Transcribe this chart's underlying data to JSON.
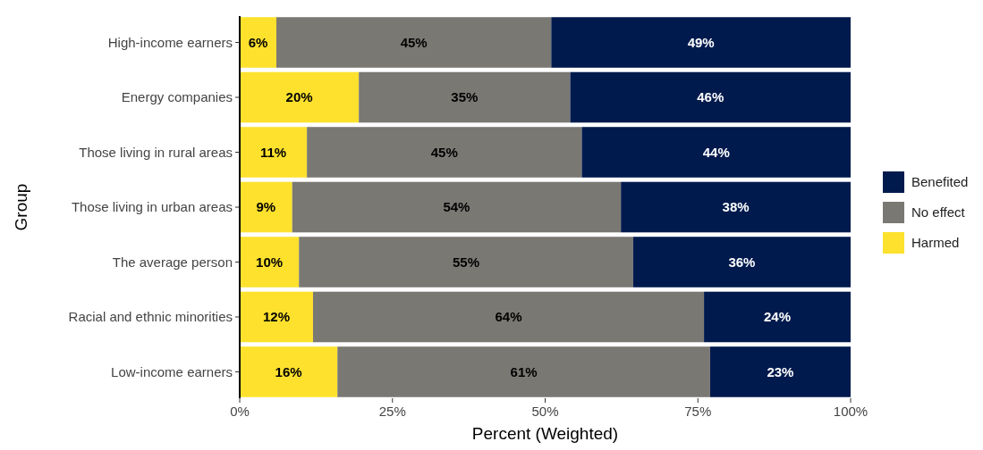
{
  "chart_data": {
    "type": "bar",
    "orientation": "horizontal",
    "stacked": true,
    "xlabel": "Percent (Weighted)",
    "ylabel": "Group",
    "categories": [
      "High-income earners",
      "Energy companies",
      "Those living in rural areas",
      "Those living in urban areas",
      "The average person",
      "Racial and ethnic minorities",
      "Low-income earners"
    ],
    "series": [
      {
        "name": "Harmed",
        "color": "#fde12d",
        "values": [
          6,
          19.5,
          11,
          8.6,
          9.7,
          12,
          16
        ],
        "value_labels": [
          "6%",
          "20%",
          "11%",
          "9%",
          "10%",
          "12%",
          "16%"
        ]
      },
      {
        "name": "No effect",
        "color": "#7a7873",
        "values": [
          45,
          34.6,
          45,
          53.8,
          54.7,
          64,
          61
        ],
        "value_labels": [
          "45%",
          "35%",
          "45%",
          "54%",
          "55%",
          "64%",
          "61%"
        ]
      },
      {
        "name": "Benefited",
        "color": "#001a4d",
        "values": [
          49,
          45.9,
          44,
          37.6,
          35.6,
          24,
          23
        ],
        "value_labels": [
          "49%",
          "46%",
          "44%",
          "38%",
          "36%",
          "24%",
          "23%"
        ]
      }
    ],
    "xlim": [
      0,
      100
    ],
    "xticks": [
      {
        "value": 0,
        "label": "0%"
      },
      {
        "value": 25,
        "label": "25%"
      },
      {
        "value": 50,
        "label": "50%"
      },
      {
        "value": 75,
        "label": "75%"
      },
      {
        "value": 100,
        "label": "100%"
      }
    ],
    "legend": "right"
  }
}
